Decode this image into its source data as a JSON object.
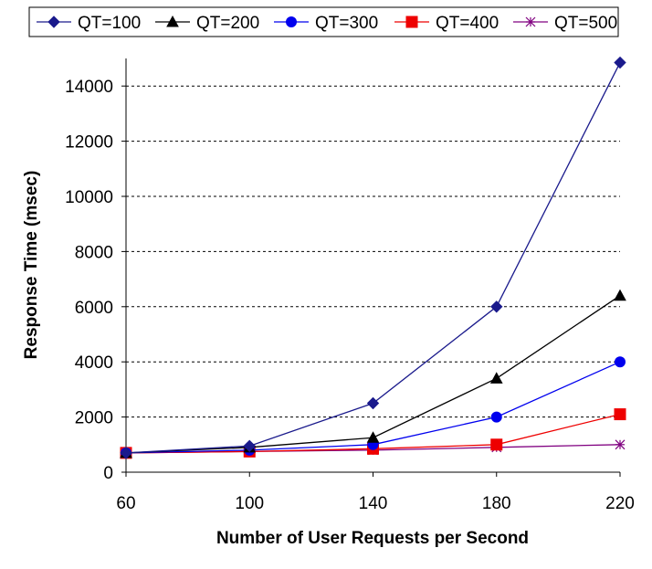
{
  "chart_data": {
    "type": "line",
    "x": [
      60,
      100,
      140,
      180,
      220
    ],
    "xlabel": "Number of User Requests per Second",
    "ylabel": "Response Time (msec)",
    "xticks": [
      "60",
      "100",
      "140",
      "180",
      "220"
    ],
    "yticks": [
      "0",
      "2000",
      "4000",
      "6000",
      "8000",
      "10000",
      "12000",
      "14000"
    ],
    "ylim": [
      0,
      15000
    ],
    "grid": "horizontal dashed",
    "legend_position": "top",
    "series": [
      {
        "name": "QT=100",
        "color": "#1a1a8c",
        "marker": "diamond",
        "values": [
          700,
          950,
          2500,
          6000,
          14850
        ]
      },
      {
        "name": "QT=200",
        "color": "#000000",
        "marker": "triangle",
        "values": [
          700,
          900,
          1250,
          3400,
          6400
        ]
      },
      {
        "name": "QT=300",
        "color": "#0000ee",
        "marker": "circle",
        "values": [
          700,
          800,
          1000,
          2000,
          4000
        ]
      },
      {
        "name": "QT=400",
        "color": "#ee0000",
        "marker": "square",
        "values": [
          700,
          750,
          850,
          1000,
          2100
        ]
      },
      {
        "name": "QT=500",
        "color": "#800080",
        "marker": "star",
        "values": [
          700,
          750,
          800,
          900,
          1000
        ]
      }
    ]
  }
}
